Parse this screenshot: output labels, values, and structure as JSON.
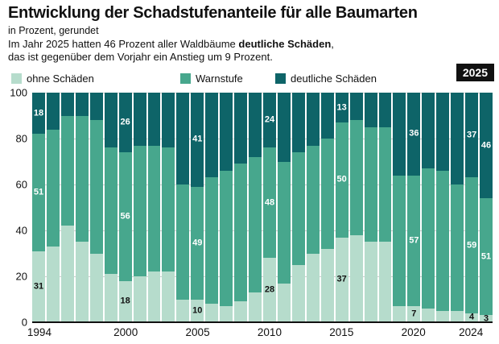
{
  "header": {
    "title": "Entwicklung der Schadstufenanteile für alle Baumarten",
    "subtitle": "in Prozent, gerundet",
    "desc1_prefix": "Im Jahr 2025 hatten 46 Prozent aller Waldbäume ",
    "desc1_bold": "deutliche Schäden",
    "desc1_suffix": ",",
    "desc2": "das ist gegenüber dem Vorjahr ein Anstieg um 9 Prozent."
  },
  "badge": {
    "label": "2025"
  },
  "legend": [
    {
      "label": "ohne Schäden",
      "color": "#b6dccc"
    },
    {
      "label": "Warnstufe",
      "color": "#47a78d"
    },
    {
      "label": "deutliche Schäden",
      "color": "#0e6468"
    }
  ],
  "chart_data": {
    "type": "bar",
    "stacked": true,
    "title": "Entwicklung der Schadstufenanteile für alle Baumarten",
    "ylabel": "in Prozent",
    "xlabel": "",
    "ylim": [
      0,
      100
    ],
    "yticks": [
      0,
      20,
      40,
      60,
      80,
      100
    ],
    "xtick_labels": [
      "1994",
      "2000",
      "2005",
      "2010",
      "2015",
      "2020",
      "2024"
    ],
    "categories": [
      1994,
      1995,
      1996,
      1997,
      1998,
      1999,
      2000,
      2001,
      2002,
      2003,
      2004,
      2005,
      2006,
      2007,
      2008,
      2009,
      2010,
      2011,
      2012,
      2013,
      2014,
      2015,
      2016,
      2017,
      2018,
      2019,
      2020,
      2021,
      2022,
      2023,
      2024,
      2025
    ],
    "series": [
      {
        "name": "ohne Schäden",
        "color": "#b6dccc",
        "label_color": "#111111",
        "values": [
          31,
          33,
          42,
          35,
          30,
          21,
          18,
          20,
          22,
          22,
          10,
          10,
          8,
          7,
          9,
          13,
          28,
          17,
          25,
          30,
          32,
          37,
          38,
          35,
          35,
          7,
          7,
          6,
          5,
          5,
          4,
          3
        ]
      },
      {
        "name": "Warnstufe",
        "color": "#47a78d",
        "label_color": "#ffffff",
        "values": [
          51,
          51,
          48,
          55,
          58,
          55,
          56,
          57,
          55,
          54,
          50,
          49,
          55,
          59,
          60,
          59,
          48,
          53,
          49,
          47,
          48,
          50,
          50,
          50,
          50,
          57,
          57,
          61,
          61,
          55,
          59,
          51
        ]
      },
      {
        "name": "deutliche Schäden",
        "color": "#0e6468",
        "label_color": "#ffffff",
        "values": [
          18,
          16,
          10,
          10,
          12,
          24,
          26,
          23,
          23,
          24,
          40,
          41,
          37,
          34,
          31,
          28,
          24,
          30,
          26,
          23,
          20,
          13,
          12,
          15,
          15,
          36,
          36,
          33,
          34,
          40,
          37,
          46
        ]
      }
    ],
    "labeled_years": [
      1994,
      2000,
      2005,
      2010,
      2015,
      2020,
      2024,
      2025
    ],
    "highlight_year": 2025,
    "legend_position": "top",
    "grid": true
  }
}
